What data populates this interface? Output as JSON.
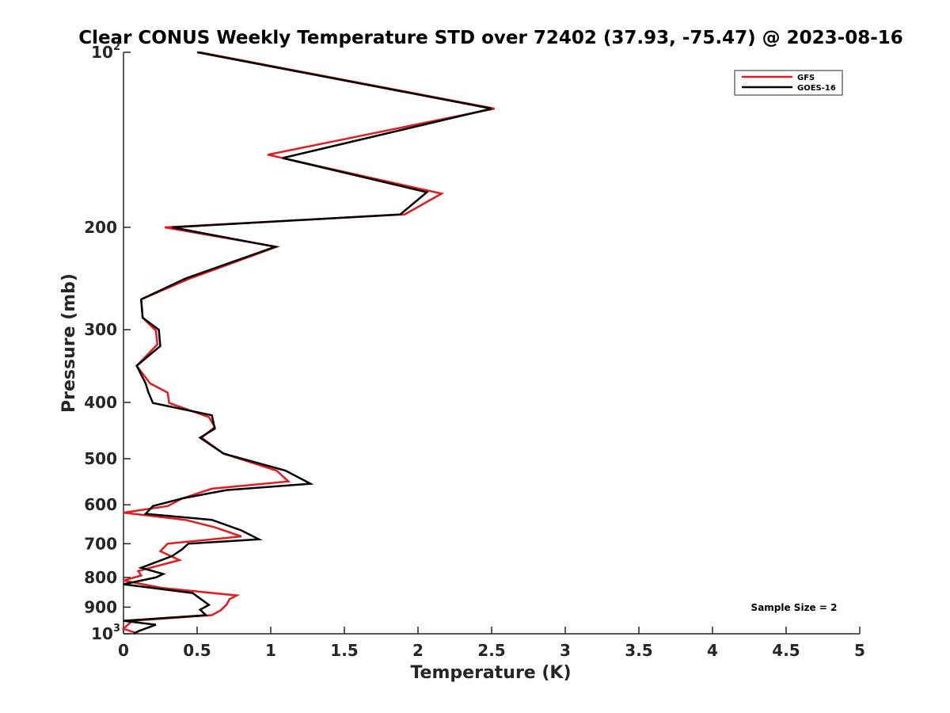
{
  "chart_data": {
    "type": "line",
    "title": "Clear CONUS Weekly Temperature STD over 72402 (37.93, -75.47) @ 2023-08-16",
    "xlabel": "Temperature (K)",
    "ylabel": "Pressure (mb)",
    "xlim": [
      0,
      5
    ],
    "ylim": [
      100,
      1000
    ],
    "yscale": "log",
    "yreversed": true,
    "grid": false,
    "legend_position": "top-right",
    "x_ticks": [
      {
        "value": 0,
        "label": "0"
      },
      {
        "value": 0.5,
        "label": "0.5"
      },
      {
        "value": 1,
        "label": "1"
      },
      {
        "value": 1.5,
        "label": "1.5"
      },
      {
        "value": 2,
        "label": "2"
      },
      {
        "value": 2.5,
        "label": "2.5"
      },
      {
        "value": 3,
        "label": "3"
      },
      {
        "value": 3.5,
        "label": "3.5"
      },
      {
        "value": 4,
        "label": "4"
      },
      {
        "value": 4.5,
        "label": "4.5"
      },
      {
        "value": 5,
        "label": "5"
      }
    ],
    "y_ticks": [
      {
        "value": 100,
        "base": "10",
        "exp": "2"
      },
      {
        "value": 200,
        "base": "200",
        "exp": ""
      },
      {
        "value": 300,
        "base": "300",
        "exp": ""
      },
      {
        "value": 400,
        "base": "400",
        "exp": ""
      },
      {
        "value": 500,
        "base": "500",
        "exp": ""
      },
      {
        "value": 600,
        "base": "600",
        "exp": ""
      },
      {
        "value": 700,
        "base": "700",
        "exp": ""
      },
      {
        "value": 800,
        "base": "800",
        "exp": ""
      },
      {
        "value": 900,
        "base": "900",
        "exp": ""
      },
      {
        "value": 1000,
        "base": "10",
        "exp": "3"
      }
    ],
    "annotation": "Sample Size = 2",
    "series": [
      {
        "name": "GFS",
        "color": "#e41a1c",
        "points": [
          [
            0.52,
            100
          ],
          [
            2.52,
            125
          ],
          [
            0.98,
            150
          ],
          [
            2.16,
            175
          ],
          [
            1.91,
            190
          ],
          [
            0.28,
            200
          ],
          [
            1.04,
            216
          ],
          [
            0.45,
            245
          ],
          [
            0.12,
            266
          ],
          [
            0.13,
            286
          ],
          [
            0.22,
            301
          ],
          [
            0.23,
            318
          ],
          [
            0.09,
            346
          ],
          [
            0.18,
            371
          ],
          [
            0.3,
            385
          ],
          [
            0.31,
            401
          ],
          [
            0.58,
            424
          ],
          [
            0.62,
            441
          ],
          [
            0.53,
            460
          ],
          [
            0.68,
            490
          ],
          [
            1.04,
            524
          ],
          [
            1.12,
            547
          ],
          [
            0.6,
            563
          ],
          [
            0.4,
            585
          ],
          [
            0.3,
            603
          ],
          [
            0.0,
            619
          ],
          [
            0.42,
            637
          ],
          [
            0.62,
            656
          ],
          [
            0.8,
            680
          ],
          [
            0.3,
            700
          ],
          [
            0.25,
            721
          ],
          [
            0.38,
            747
          ],
          [
            0.1,
            780
          ],
          [
            0.12,
            794
          ],
          [
            0.0,
            810
          ],
          [
            0.26,
            834
          ],
          [
            0.77,
            859
          ],
          [
            0.72,
            872
          ],
          [
            0.7,
            891
          ],
          [
            0.66,
            911
          ],
          [
            0.6,
            929
          ],
          [
            0.06,
            950
          ],
          [
            0.0,
            980
          ],
          [
            0.1,
            1000
          ]
        ]
      },
      {
        "name": "GOES-16",
        "color": "#000000",
        "points": [
          [
            0.5,
            100
          ],
          [
            2.5,
            125
          ],
          [
            1.08,
            152
          ],
          [
            2.06,
            174
          ],
          [
            1.88,
            190
          ],
          [
            0.33,
            200
          ],
          [
            1.03,
            216
          ],
          [
            0.42,
            245
          ],
          [
            0.12,
            266
          ],
          [
            0.13,
            286
          ],
          [
            0.24,
            300
          ],
          [
            0.25,
            320
          ],
          [
            0.09,
            346
          ],
          [
            0.15,
            371
          ],
          [
            0.17,
            385
          ],
          [
            0.2,
            401
          ],
          [
            0.6,
            421
          ],
          [
            0.62,
            444
          ],
          [
            0.52,
            460
          ],
          [
            0.68,
            490
          ],
          [
            1.1,
            524
          ],
          [
            1.27,
            552
          ],
          [
            0.7,
            566
          ],
          [
            0.4,
            585
          ],
          [
            0.2,
            603
          ],
          [
            0.15,
            622
          ],
          [
            0.6,
            637
          ],
          [
            0.8,
            664
          ],
          [
            0.92,
            688
          ],
          [
            0.44,
            700
          ],
          [
            0.4,
            715
          ],
          [
            0.33,
            735
          ],
          [
            0.12,
            770
          ],
          [
            0.27,
            789
          ],
          [
            0.22,
            800
          ],
          [
            0.0,
            822
          ],
          [
            0.47,
            851
          ],
          [
            0.5,
            862
          ],
          [
            0.58,
            892
          ],
          [
            0.52,
            909
          ],
          [
            0.56,
            929
          ],
          [
            0.0,
            950
          ],
          [
            0.22,
            965
          ],
          [
            0.1,
            990
          ],
          [
            0.07,
            1000
          ]
        ]
      }
    ]
  }
}
